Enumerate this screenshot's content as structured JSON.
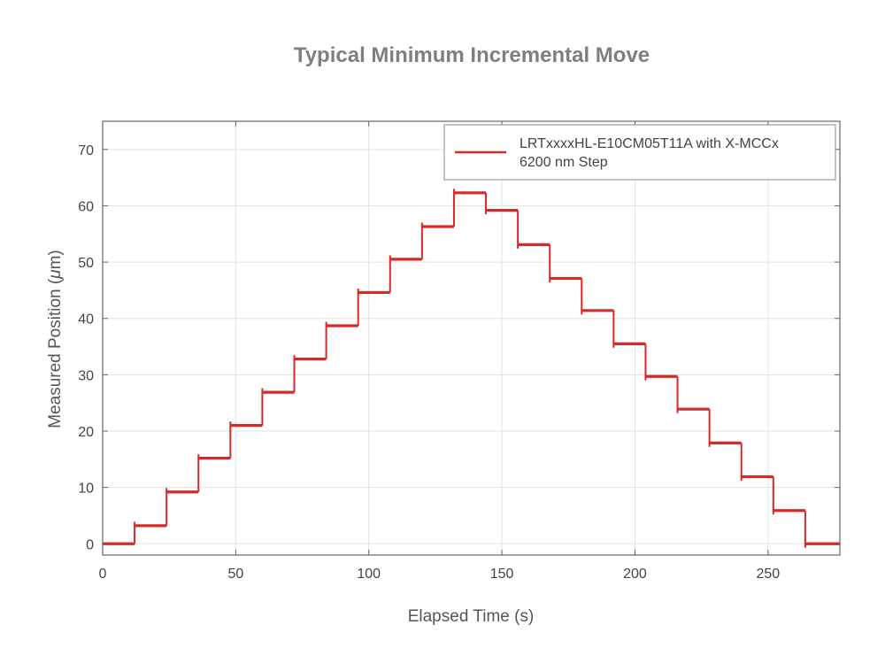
{
  "chart_data": {
    "type": "line",
    "title": "Typical Minimum Incremental Move",
    "xlabel": "Elapsed Time (s)",
    "ylabel_prefix": "Measured Position (",
    "ylabel_unit_mu": "μ",
    "ylabel_suffix": "m)",
    "xlim": [
      0,
      277
    ],
    "ylim": [
      -2,
      75
    ],
    "x_ticks": [
      0,
      50,
      100,
      150,
      200,
      250
    ],
    "y_ticks": [
      0,
      10,
      20,
      30,
      40,
      50,
      60,
      70
    ],
    "grid": true,
    "legend_position": "top-right",
    "series": [
      {
        "name": "LRTxxxxHL-E10CM05T11A with X-MCCx",
        "name_line2": "6200 nm Step",
        "color": "#d42a2a",
        "steps": [
          {
            "t_start": 0,
            "t_end": 12,
            "value": 0
          },
          {
            "t_start": 12,
            "t_end": 24,
            "value": 3.2
          },
          {
            "t_start": 24,
            "t_end": 36,
            "value": 9.2
          },
          {
            "t_start": 36,
            "t_end": 48,
            "value": 15.2
          },
          {
            "t_start": 48,
            "t_end": 60,
            "value": 21.0
          },
          {
            "t_start": 60,
            "t_end": 72,
            "value": 26.9
          },
          {
            "t_start": 72,
            "t_end": 84,
            "value": 32.8
          },
          {
            "t_start": 84,
            "t_end": 96,
            "value": 38.7
          },
          {
            "t_start": 96,
            "t_end": 108,
            "value": 44.6
          },
          {
            "t_start": 108,
            "t_end": 120,
            "value": 50.5
          },
          {
            "t_start": 120,
            "t_end": 132,
            "value": 56.3
          },
          {
            "t_start": 132,
            "t_end": 144,
            "value": 62.3
          },
          {
            "t_start": 144,
            "t_end": 156,
            "value": 59.2
          },
          {
            "t_start": 156,
            "t_end": 168,
            "value": 53.1
          },
          {
            "t_start": 168,
            "t_end": 180,
            "value": 47.1
          },
          {
            "t_start": 180,
            "t_end": 192,
            "value": 41.4
          },
          {
            "t_start": 192,
            "t_end": 204,
            "value": 35.5
          },
          {
            "t_start": 204,
            "t_end": 216,
            "value": 29.7
          },
          {
            "t_start": 216,
            "t_end": 228,
            "value": 23.9
          },
          {
            "t_start": 228,
            "t_end": 240,
            "value": 17.9
          },
          {
            "t_start": 240,
            "t_end": 252,
            "value": 11.9
          },
          {
            "t_start": 252,
            "t_end": 264,
            "value": 5.9
          },
          {
            "t_start": 264,
            "t_end": 277,
            "value": 0
          }
        ]
      }
    ]
  }
}
